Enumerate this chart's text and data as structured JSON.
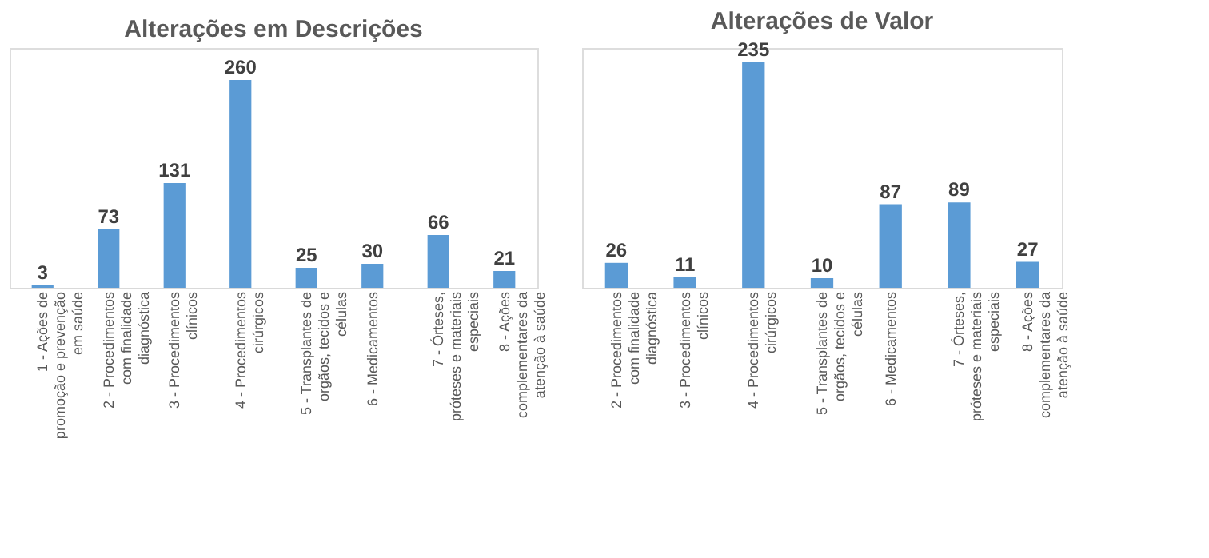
{
  "chart_data": [
    {
      "type": "bar",
      "title": "Alterações em Descrições",
      "categories": [
        "1 - Ações de promoção e prevenção em saúde",
        "2 - Procedimentos com finalidade diagnóstica",
        "3 - Procedimentos clínicos",
        "4 - Procedimentos cirúrgicos",
        "5 - Transplantes de orgãos, tecidos e células",
        "6 - Medicamentos",
        "7 - Órteses, próteses e materiais especiais",
        "8 - Ações complementares da atenção à saúde"
      ],
      "values": [
        3,
        73,
        131,
        260,
        25,
        30,
        66,
        21
      ],
      "color": "#5b9bd5",
      "ylim": [
        0,
        300
      ],
      "tick_labels": "x",
      "data_labels": true
    },
    {
      "type": "bar",
      "title": "Alterações de Valor",
      "categories": [
        "2 - Procedimentos com finalidade diagnóstica",
        "3 - Procedimentos clínicos",
        "4 - Procedimentos cirúrgicos",
        "5 - Transplantes de orgãos, tecidos e células",
        "6 - Medicamentos",
        "7 - Órteses, próteses e materiais especiais",
        "8 - Ações complementares da atenção à saúde"
      ],
      "values": [
        26,
        11,
        235,
        10,
        87,
        89,
        27
      ],
      "color": "#5b9bd5",
      "ylim": [
        0,
        250
      ],
      "tick_labels": "x",
      "data_labels": true
    }
  ]
}
